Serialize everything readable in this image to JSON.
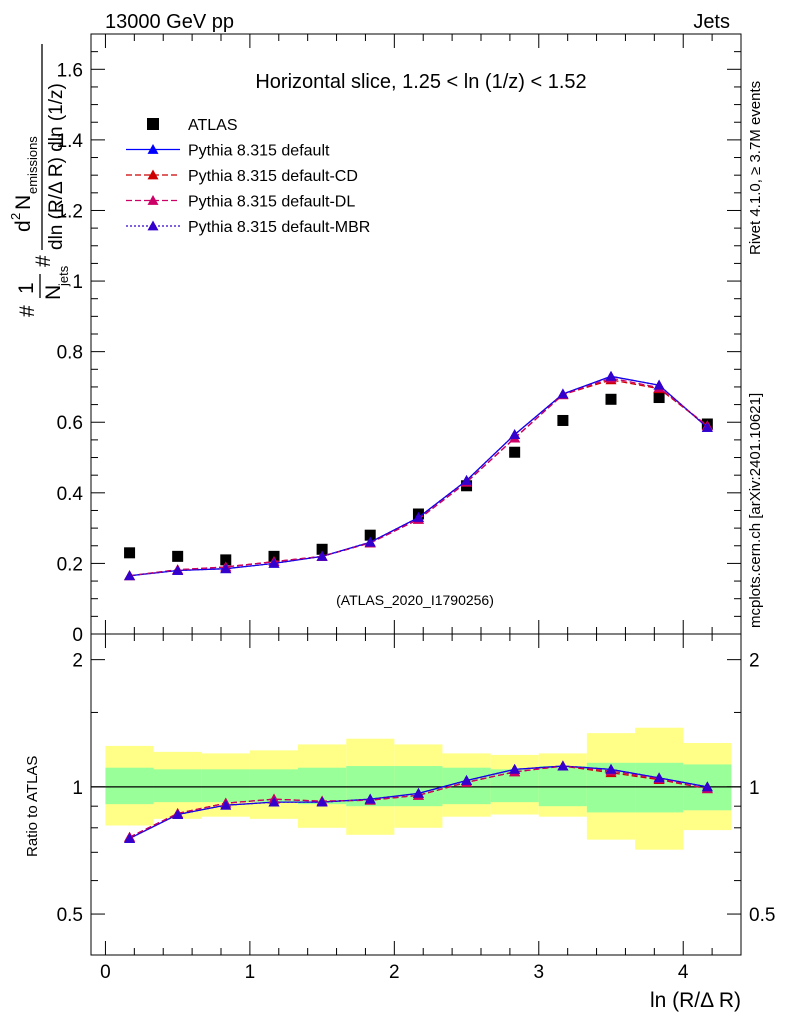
{
  "header": {
    "left": "13000 GeV pp",
    "right": "Jets"
  },
  "side_labels": {
    "rivet": "Rivet 4.1.0, ≥ 3.7M events",
    "mcplots": "mcplots.cern.ch [arXiv:2401.10621]"
  },
  "colors": {
    "data": "#000000",
    "default": "#0000ff",
    "cd": "#cc0000",
    "dl": "#cc0066",
    "mbr": "#3300cc",
    "band_inner": "#99ff99",
    "band_outer": "#ffff88",
    "watermark": "#999999"
  },
  "chart_data": [
    {
      "type": "scatter",
      "title": "Horizontal slice, 1.25 < ln (1/z) < 1.52",
      "watermark": "(ATLAS_2020_I1790256)",
      "ylabel": "1/N_jets d²N_emissions/dln(R/ΔR) dln(1/z)",
      "ylabel_parts": {
        "prefix": "#",
        "one": "1",
        "njets_n": "N",
        "njets_sub": "jets",
        "hash": "#",
        "d2n_d": "d",
        "d2n_sup": "2",
        "d2n_n": "N",
        "d2n_sub": "emissions",
        "denominator": "dln (R/Δ R) dln (1/z)"
      },
      "xlim": [
        -0.1,
        4.4
      ],
      "ylim": [
        0,
        1.7
      ],
      "yticks": [
        0,
        0.2,
        0.4,
        0.6,
        0.8,
        1,
        1.2,
        1.4,
        1.6
      ],
      "ytick_labels": [
        "0",
        "0.2",
        "0.4",
        "0.6",
        "0.8",
        "1",
        "1.2",
        "1.4",
        "1.6"
      ],
      "x": [
        0.167,
        0.5,
        0.833,
        1.167,
        1.5,
        1.833,
        2.167,
        2.5,
        2.833,
        3.167,
        3.5,
        3.833,
        4.167
      ],
      "series": [
        {
          "name": "ATLAS",
          "style": "data",
          "values": [
            0.23,
            0.22,
            0.21,
            0.22,
            0.24,
            0.28,
            0.34,
            0.42,
            0.515,
            0.605,
            0.665,
            0.67,
            0.595
          ]
        },
        {
          "name": "Pythia 8.315 default",
          "style": "default",
          "values": [
            0.165,
            0.18,
            0.185,
            0.2,
            0.22,
            0.26,
            0.33,
            0.435,
            0.565,
            0.68,
            0.73,
            0.705,
            0.585
          ]
        },
        {
          "name": "Pythia 8.315 default-CD",
          "style": "cd",
          "values": [
            0.165,
            0.182,
            0.19,
            0.205,
            0.22,
            0.258,
            0.325,
            0.43,
            0.555,
            0.678,
            0.72,
            0.695,
            0.59
          ]
        },
        {
          "name": "Pythia 8.315 default-DL",
          "style": "dl",
          "values": [
            0.165,
            0.182,
            0.19,
            0.205,
            0.22,
            0.258,
            0.325,
            0.43,
            0.555,
            0.678,
            0.725,
            0.698,
            0.59
          ]
        },
        {
          "name": "Pythia 8.315 default-MBR",
          "style": "mbr",
          "values": [
            0.165,
            0.18,
            0.185,
            0.2,
            0.22,
            0.26,
            0.33,
            0.435,
            0.565,
            0.68,
            0.73,
            0.705,
            0.585
          ]
        }
      ]
    },
    {
      "type": "scatter",
      "title": "",
      "ylabel": "Ratio to ATLAS",
      "xlabel": "ln (R/Δ R)",
      "xlim": [
        -0.1,
        4.4
      ],
      "ylim": [
        0.4,
        2.3
      ],
      "xticks": [
        0,
        1,
        2,
        3,
        4
      ],
      "xtick_labels": [
        "0",
        "1",
        "2",
        "3",
        "4"
      ],
      "yticks": [
        0.5,
        1,
        2
      ],
      "ytick_labels": [
        "0.5",
        "1",
        "2"
      ],
      "x": [
        0.167,
        0.5,
        0.833,
        1.167,
        1.5,
        1.833,
        2.167,
        2.5,
        2.833,
        3.167,
        3.5,
        3.833,
        4.167
      ],
      "x_edges": [
        0,
        0.333,
        0.667,
        1,
        1.333,
        1.667,
        2,
        2.333,
        2.667,
        3,
        3.333,
        3.667,
        4,
        4.333
      ],
      "band_inner": [
        [
          0.91,
          1.11
        ],
        [
          0.92,
          1.1
        ],
        [
          0.92,
          1.1
        ],
        [
          0.92,
          1.1
        ],
        [
          0.91,
          1.11
        ],
        [
          0.9,
          1.12
        ],
        [
          0.9,
          1.12
        ],
        [
          0.91,
          1.11
        ],
        [
          0.92,
          1.1
        ],
        [
          0.9,
          1.12
        ],
        [
          0.87,
          1.14
        ],
        [
          0.87,
          1.14
        ],
        [
          0.88,
          1.13
        ]
      ],
      "band_outer": [
        [
          0.81,
          1.25
        ],
        [
          0.84,
          1.21
        ],
        [
          0.85,
          1.2
        ],
        [
          0.84,
          1.22
        ],
        [
          0.8,
          1.26
        ],
        [
          0.77,
          1.3
        ],
        [
          0.8,
          1.26
        ],
        [
          0.85,
          1.2
        ],
        [
          0.86,
          1.19
        ],
        [
          0.85,
          1.2
        ],
        [
          0.75,
          1.34
        ],
        [
          0.71,
          1.38
        ],
        [
          0.79,
          1.27
        ]
      ],
      "series": [
        {
          "name": "Pythia 8.315 default",
          "style": "default",
          "values": [
            0.755,
            0.86,
            0.905,
            0.92,
            0.92,
            0.935,
            0.965,
            1.035,
            1.1,
            1.12,
            1.1,
            1.05,
            1.0
          ]
        },
        {
          "name": "Pythia 8.315 default-CD",
          "style": "cd",
          "values": [
            0.76,
            0.865,
            0.915,
            0.935,
            0.925,
            0.93,
            0.955,
            1.025,
            1.085,
            1.12,
            1.08,
            1.04,
            0.99
          ]
        },
        {
          "name": "Pythia 8.315 default-DL",
          "style": "dl",
          "values": [
            0.76,
            0.865,
            0.915,
            0.935,
            0.925,
            0.93,
            0.955,
            1.025,
            1.085,
            1.12,
            1.09,
            1.045,
            0.99
          ]
        },
        {
          "name": "Pythia 8.315 default-MBR",
          "style": "mbr",
          "values": [
            0.755,
            0.86,
            0.905,
            0.92,
            0.92,
            0.935,
            0.965,
            1.035,
            1.1,
            1.12,
            1.1,
            1.05,
            1.0
          ]
        }
      ]
    }
  ]
}
